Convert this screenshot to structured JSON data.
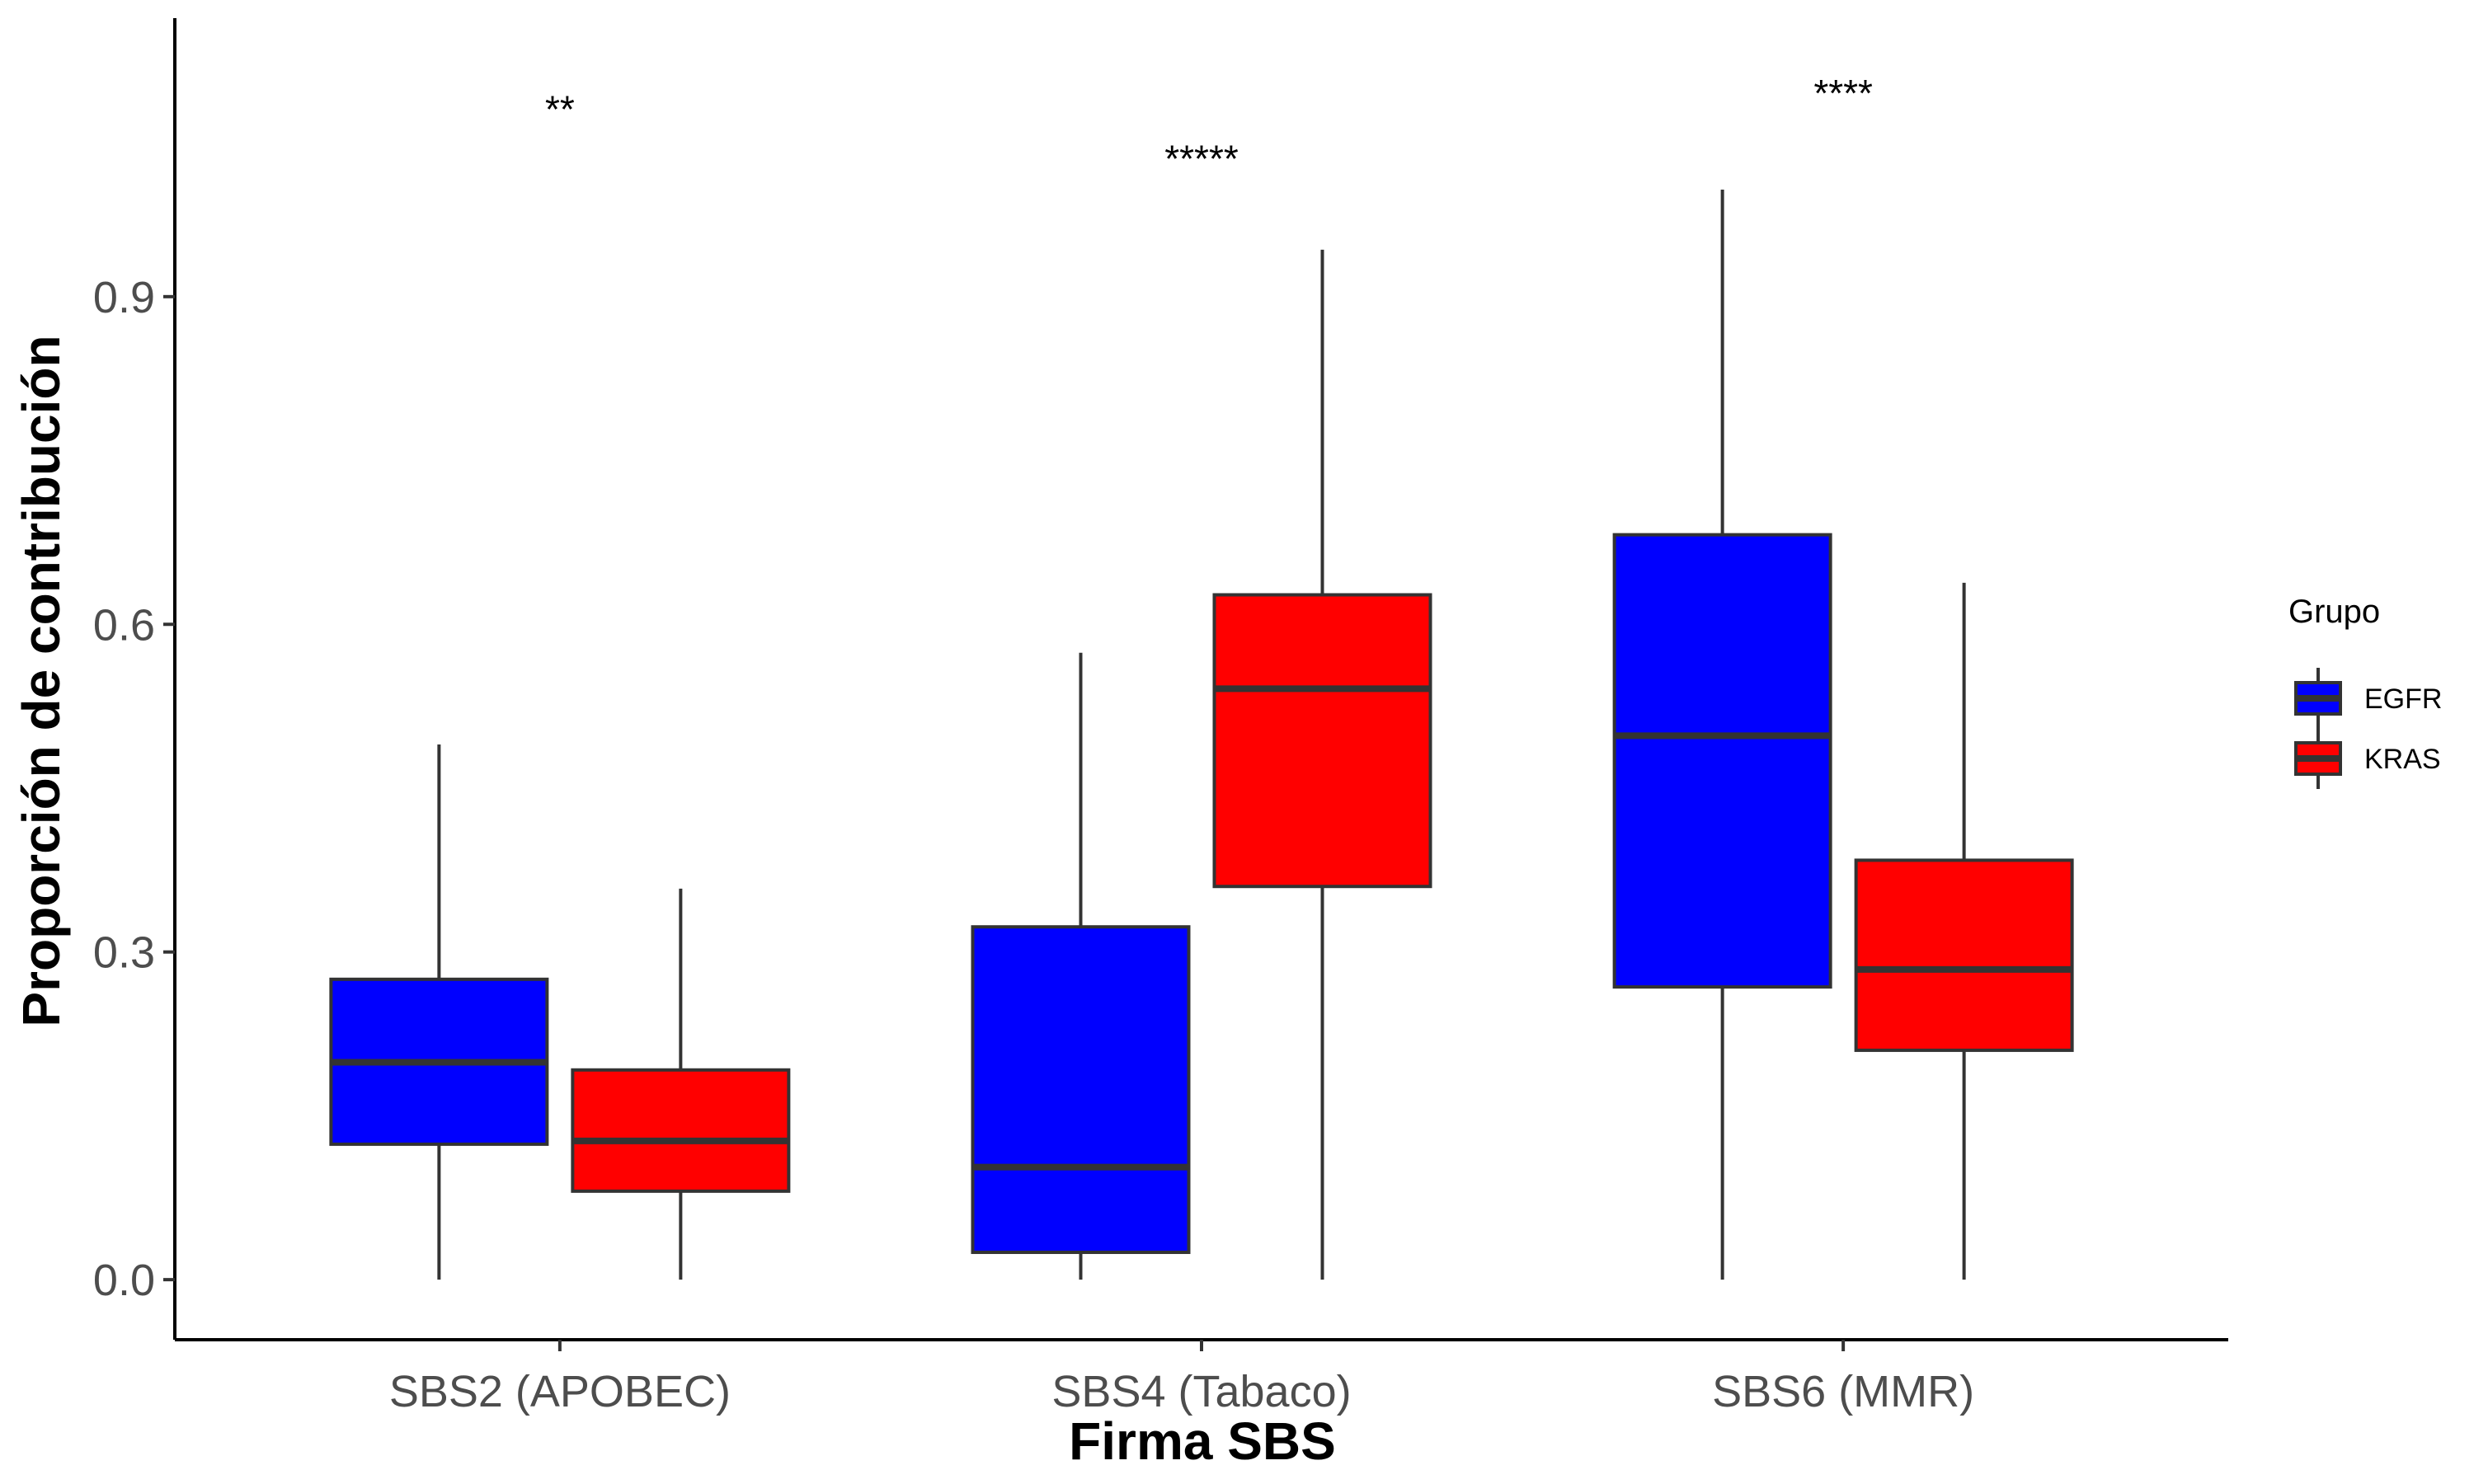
{
  "chart_data": {
    "type": "boxplot",
    "xlabel": "Firma SBS",
    "ylabel": "Proporción de contribución",
    "ylim": [
      -0.055,
      1.155
    ],
    "yticks": [
      0.0,
      0.3,
      0.6,
      0.9
    ],
    "ytick_labels": [
      "0.0",
      "0.3",
      "0.6",
      "0.9"
    ],
    "categories": [
      "SBS2 (APOBEC)",
      "SBS4 (Tabaco)",
      "SBS6 (MMR)"
    ],
    "significance": [
      "**",
      "*****",
      "****"
    ],
    "significance_y": [
      1.085,
      1.04,
      1.1
    ],
    "legend": {
      "title": "Grupo",
      "position": "right"
    },
    "grid": false,
    "series": [
      {
        "name": "EGFR",
        "color": "#0000FF",
        "boxes": [
          {
            "min": 0.0,
            "q1": 0.124,
            "median": 0.199,
            "q3": 0.275,
            "max": 0.49
          },
          {
            "min": 0.0,
            "q1": 0.025,
            "median": 0.103,
            "q3": 0.323,
            "max": 0.574
          },
          {
            "min": 0.0,
            "q1": 0.268,
            "median": 0.498,
            "q3": 0.682,
            "max": 0.998
          }
        ]
      },
      {
        "name": "KRAS",
        "color": "#FF0000",
        "boxes": [
          {
            "min": 0.0,
            "q1": 0.081,
            "median": 0.127,
            "q3": 0.192,
            "max": 0.358
          },
          {
            "min": 0.0,
            "q1": 0.36,
            "median": 0.541,
            "q3": 0.627,
            "max": 0.943
          },
          {
            "min": 0.0,
            "q1": 0.21,
            "median": 0.284,
            "q3": 0.384,
            "max": 0.638
          }
        ]
      }
    ]
  }
}
